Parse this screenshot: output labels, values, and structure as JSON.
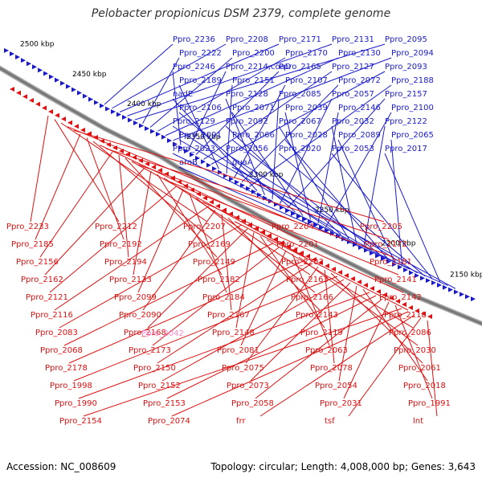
{
  "title": "Pelobacter propionicus DSM 2379, complete genome",
  "footer": {
    "accession": "Accession: NC_008609",
    "summary": "Topology: circular; Length: 4,008,000 bp; Genes: 3,643"
  },
  "colors": {
    "forward": "#1a1acc",
    "reverse": "#dd1111",
    "highlight": "#ff88cc",
    "backbone": "#777777"
  },
  "ticks": [
    "2500 kbp",
    "2450 kbp",
    "2400 kbp",
    "2350 kbp",
    "2300 kbp",
    "2250 kbp",
    "2200 kbp",
    "2150 kbp"
  ],
  "forward_labels": [
    "Ppro_2236",
    "Ppro_2208",
    "Ppro_2171",
    "Ppro_2131",
    "Ppro_2095",
    "Ppro_2222",
    "Ppro_2200",
    "Ppro_2170",
    "Ppro_2130",
    "Ppro_2094",
    "Ppro_2246",
    "Ppro_2214,coaD",
    "Ppro_2165",
    "Ppro_2127",
    "Ppro_2093",
    "Ppro_2189",
    "Ppro_2151",
    "Ppro_2107",
    "Ppro_2072",
    "Ppro_2188",
    "nadE",
    "Ppro_2128",
    "Ppro_2085",
    "Ppro_2057",
    "Ppro_2157",
    "Ppro_2106",
    "Ppro_2071",
    "Ppro_2039",
    "Ppro_2146",
    "Ppro_2100",
    "Ppro_2129",
    "Ppro_2092",
    "Ppro_2067",
    "Ppro_2032",
    "Ppro_2122",
    "Ppro_2091",
    "Ppro_2066",
    "Ppro_2028",
    "Ppro_2089",
    "Ppro_2065",
    "Ppro_2023",
    "Ppro_2056",
    "Ppro_2020",
    "Ppro_2053",
    "Ppro_2017",
    "aroB",
    "guaA"
  ],
  "reverse_labels": [
    "Ppro_2233",
    "Ppro_2212",
    "Ppro_2207",
    "Ppro_2204",
    "Ppro_2205",
    "Ppro_2185",
    "Ppro_2192",
    "Ppro_2169",
    "Ppro_2201",
    "Ppro_2172",
    "Ppro_2156",
    "Ppro_2194",
    "Ppro_2149",
    "Ppro_2203",
    "Ppro_2181",
    "Ppro_2162",
    "Ppro_2133",
    "Ppro_2182",
    "Ppro_2163",
    "Ppro_2141",
    "Ppro_2121",
    "Ppro_2099",
    "Ppro_2184",
    "Ppro_2166",
    "Ppro_2142",
    "Ppro_2116",
    "Ppro_2090",
    "Ppro_2167",
    "Ppro_2143",
    "Ppro_2118",
    "Ppro_2083",
    "Ppro_2168",
    "Ppro_2148",
    "Ppro_2119",
    "Ppro_2086",
    "Ppro_2068",
    "Ppro_2173",
    "Ppro_2081",
    "Ppro_2063",
    "Ppro_2030",
    "Ppro_2178",
    "Ppro_2150",
    "Ppro_2075",
    "Ppro_2078",
    "Ppro_2061",
    "Ppro_1998",
    "Ppro_2152",
    "Ppro_2073",
    "Ppro_2054",
    "Ppro_2018",
    "Ppro_1990",
    "Ppro_2153",
    "Ppro_2058",
    "Ppro_2031",
    "Ppro_1991",
    "Ppro_2154",
    "Ppro_2074",
    "frr",
    "tsf",
    "lnt"
  ],
  "highlight_labels": [
    "Ppro_2042"
  ]
}
